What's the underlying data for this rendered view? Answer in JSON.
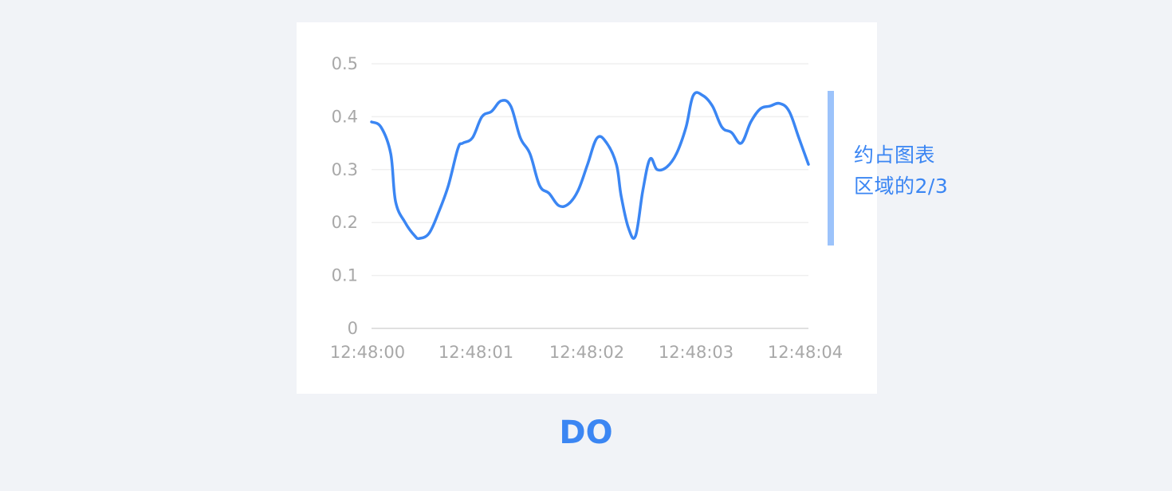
{
  "chart_data": {
    "type": "line",
    "x": [
      "12:48:00",
      "12:48:01",
      "12:48:02",
      "12:48:03",
      "12:48:04"
    ],
    "ylim": [
      0,
      0.5
    ],
    "yticks": [
      "0",
      "0.1",
      "0.2",
      "0.3",
      "0.4",
      "0.5"
    ],
    "grid": true,
    "series": [
      {
        "color": "#3b86f3",
        "points": [
          [
            0.0,
            0.39
          ],
          [
            0.02,
            0.38
          ],
          [
            0.04,
            0.33
          ],
          [
            0.05,
            0.24
          ],
          [
            0.07,
            0.2
          ],
          [
            0.09,
            0.175
          ],
          [
            0.1,
            0.17
          ],
          [
            0.12,
            0.18
          ],
          [
            0.14,
            0.22
          ],
          [
            0.16,
            0.27
          ],
          [
            0.18,
            0.34
          ],
          [
            0.19,
            0.35
          ],
          [
            0.21,
            0.36
          ],
          [
            0.23,
            0.4
          ],
          [
            0.25,
            0.41
          ],
          [
            0.27,
            0.43
          ],
          [
            0.29,
            0.42
          ],
          [
            0.31,
            0.36
          ],
          [
            0.33,
            0.33
          ],
          [
            0.35,
            0.27
          ],
          [
            0.37,
            0.255
          ],
          [
            0.39,
            0.232
          ],
          [
            0.41,
            0.235
          ],
          [
            0.43,
            0.26
          ],
          [
            0.45,
            0.31
          ],
          [
            0.47,
            0.36
          ],
          [
            0.49,
            0.35
          ],
          [
            0.51,
            0.31
          ],
          [
            0.52,
            0.25
          ],
          [
            0.535,
            0.19
          ],
          [
            0.55,
            0.175
          ],
          [
            0.565,
            0.26
          ],
          [
            0.58,
            0.32
          ],
          [
            0.595,
            0.3
          ],
          [
            0.615,
            0.305
          ],
          [
            0.635,
            0.33
          ],
          [
            0.655,
            0.38
          ],
          [
            0.67,
            0.44
          ],
          [
            0.69,
            0.44
          ],
          [
            0.71,
            0.42
          ],
          [
            0.73,
            0.38
          ],
          [
            0.75,
            0.37
          ],
          [
            0.77,
            0.35
          ],
          [
            0.79,
            0.39
          ],
          [
            0.81,
            0.415
          ],
          [
            0.83,
            0.42
          ],
          [
            0.85,
            0.425
          ],
          [
            0.87,
            0.41
          ],
          [
            0.89,
            0.36
          ],
          [
            0.91,
            0.31
          ]
        ]
      }
    ]
  },
  "annotation": {
    "line1": "约占图表",
    "line2": "区域的2/3",
    "color": "#9cc3fb",
    "text_color": "#3b86f3"
  },
  "verdict": {
    "label": "DO",
    "color": "#3b86f3"
  },
  "background": "#f1f3f7",
  "grid_color": "#efefef",
  "axis_color": "#e0e0e0",
  "label_color": "#a8a8a8"
}
